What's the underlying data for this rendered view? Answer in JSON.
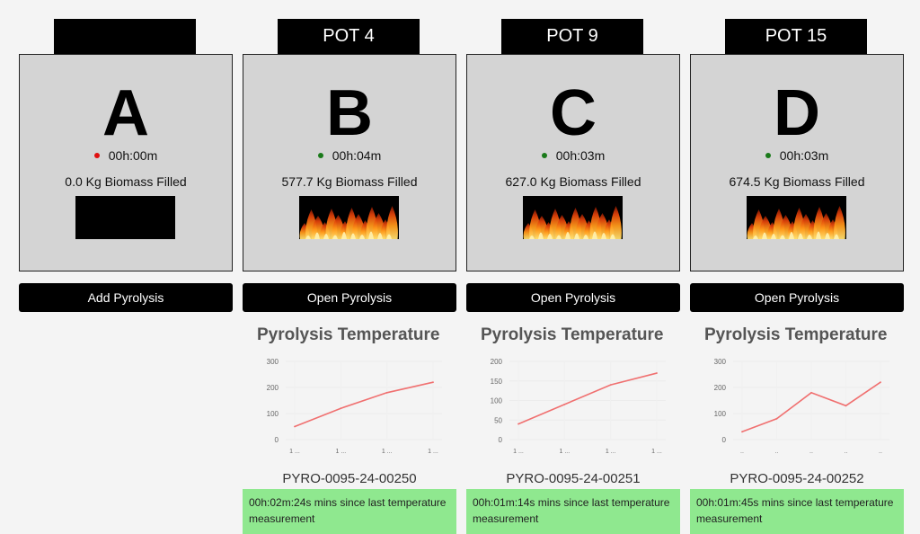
{
  "cards": [
    {
      "tab_label": "",
      "letter": "A",
      "status_color": "#e01010",
      "timer": "00h:00m",
      "biomass": "0.0 Kg Biomass Filled",
      "has_fire": false,
      "button_label": "Add Pyrolysis"
    },
    {
      "tab_label": "POT 4",
      "letter": "B",
      "status_color": "#1a7a1a",
      "timer": "00h:04m",
      "biomass": "577.7 Kg Biomass Filled",
      "has_fire": true,
      "button_label": "Open Pyrolysis",
      "chart_title": "Pyrolysis Temperature",
      "pot_id": "PYRO-0095-24-00250",
      "since_measurement": "00h:02m:24s mins since last temperature measurement"
    },
    {
      "tab_label": "POT 9",
      "letter": "C",
      "status_color": "#1a7a1a",
      "timer": "00h:03m",
      "biomass": "627.0 Kg Biomass Filled",
      "has_fire": true,
      "button_label": "Open Pyrolysis",
      "chart_title": "Pyrolysis Temperature",
      "pot_id": "PYRO-0095-24-00251",
      "since_measurement": "00h:01m:14s mins since last temperature measurement"
    },
    {
      "tab_label": "POT 15",
      "letter": "D",
      "status_color": "#1a7a1a",
      "timer": "00h:03m",
      "biomass": "674.5 Kg Biomass Filled",
      "has_fire": true,
      "button_label": "Open Pyrolysis",
      "chart_title": "Pyrolysis Temperature",
      "pot_id": "PYRO-0095-24-00252",
      "since_measurement": "00h:01m:45s mins since last temperature measurement"
    }
  ],
  "chart_data": [
    {
      "type": "line",
      "x": [
        "1 ...",
        "1 ...",
        "1 ...",
        "1 ..."
      ],
      "series": [
        {
          "values": [
            50,
            120,
            180,
            220
          ]
        }
      ],
      "ylim": [
        0,
        300
      ],
      "yticks": [
        0,
        100,
        200,
        300
      ],
      "line_color": "#f07070",
      "grid": true
    },
    {
      "type": "line",
      "x": [
        "1 ...",
        "1 ...",
        "1 ...",
        "1 ..."
      ],
      "series": [
        {
          "values": [
            40,
            90,
            140,
            170
          ]
        }
      ],
      "ylim": [
        0,
        200
      ],
      "yticks": [
        0,
        50,
        100,
        150,
        200
      ],
      "line_color": "#f07070",
      "grid": true
    },
    {
      "type": "line",
      "x": [
        "..",
        "..",
        "..",
        "..",
        ".."
      ],
      "series": [
        {
          "values": [
            30,
            80,
            180,
            130,
            220
          ]
        }
      ],
      "ylim": [
        0,
        300
      ],
      "yticks": [
        0,
        100,
        200,
        300
      ],
      "line_color": "#f07070",
      "grid": true
    }
  ]
}
